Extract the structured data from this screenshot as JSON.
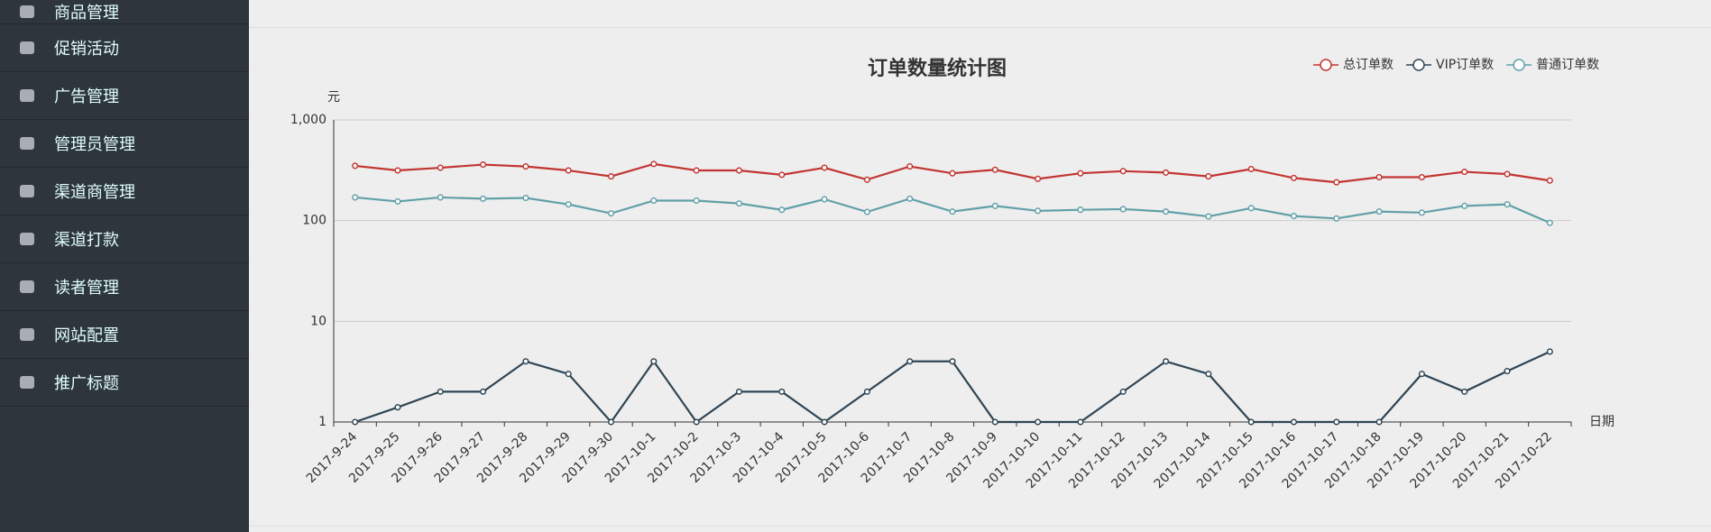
{
  "sidebar": {
    "menu": [
      "商品管理",
      "促销活动",
      "广告管理",
      "管理员管理",
      "渠道商管理",
      "渠道打款",
      "读者管理",
      "网站配置",
      "推广标题"
    ]
  },
  "chart_data": {
    "type": "line",
    "title": "订单数量统计图",
    "y_label": "元",
    "x_label": "日期",
    "categories": [
      "2017-9-24",
      "2017-9-25",
      "2017-9-26",
      "2017-9-27",
      "2017-9-28",
      "2017-9-29",
      "2017-9-30",
      "2017-10-1",
      "2017-10-2",
      "2017-10-3",
      "2017-10-4",
      "2017-10-5",
      "2017-10-6",
      "2017-10-7",
      "2017-10-8",
      "2017-10-9",
      "2017-10-10",
      "2017-10-11",
      "2017-10-12",
      "2017-10-13",
      "2017-10-14",
      "2017-10-15",
      "2017-10-16",
      "2017-10-17",
      "2017-10-18",
      "2017-10-19",
      "2017-10-20",
      "2017-10-21",
      "2017-10-22"
    ],
    "series": [
      {
        "name": "总订单数",
        "color": "#c23531",
        "values": [
          350,
          315,
          335,
          360,
          345,
          315,
          275,
          365,
          315,
          315,
          285,
          335,
          255,
          345,
          295,
          320,
          260,
          295,
          310,
          300,
          275,
          325,
          265,
          240,
          270,
          270,
          305,
          290,
          250
        ]
      },
      {
        "name": "VIP订单数",
        "color": "#2f4554",
        "values": [
          1,
          1.4,
          2,
          2,
          4,
          3,
          1,
          4,
          1,
          2,
          2,
          1,
          2,
          4,
          4,
          1,
          1,
          1,
          2,
          4,
          3,
          1,
          1,
          1,
          1,
          3,
          2,
          3.2,
          5
        ]
      },
      {
        "name": "普通订单数",
        "color": "#61a0a8",
        "values": [
          170,
          155,
          170,
          165,
          168,
          145,
          118,
          158,
          158,
          148,
          128,
          163,
          122,
          165,
          123,
          140,
          125,
          128,
          130,
          123,
          110,
          133,
          111,
          105,
          123,
          120,
          140,
          145,
          95
        ]
      }
    ],
    "log_scale": true,
    "ylim": [
      1,
      1000
    ],
    "yticks": [
      1,
      10,
      100,
      {
        "value": 1000,
        "label": "1,000"
      }
    ],
    "grid": true,
    "legend": "top-right"
  }
}
